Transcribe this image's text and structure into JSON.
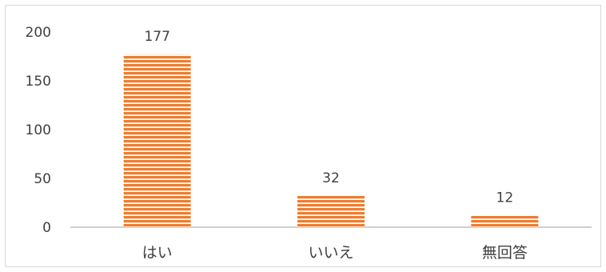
{
  "chart_data": {
    "type": "bar",
    "categories": [
      "はい",
      "いいえ",
      "無回答"
    ],
    "values": [
      177,
      32,
      12
    ],
    "title": "",
    "xlabel": "",
    "ylabel": "",
    "ylim": [
      0,
      200
    ],
    "yticks": [
      0,
      50,
      100,
      150,
      200
    ],
    "grid": false,
    "legend": "none",
    "bar_color": "#ed7d31",
    "bar_stripe_color": "#ffffff",
    "bar_pattern": "horizontal-stripes"
  }
}
